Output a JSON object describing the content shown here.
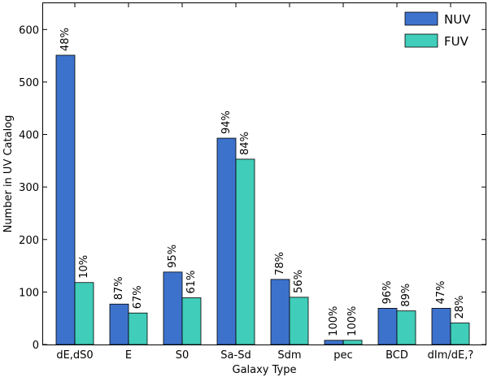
{
  "chart_data": {
    "type": "bar",
    "title": "",
    "xlabel": "Galaxy Type",
    "ylabel": "Number in UV Catalog",
    "ylim": [
      0,
      650
    ],
    "yticks": [
      0,
      100,
      200,
      300,
      400,
      500,
      600
    ],
    "grid": false,
    "legend_position": "top-right",
    "categories": [
      "dE,dS0",
      "E",
      "S0",
      "Sa-Sd",
      "Sdm",
      "pec",
      "BCD",
      "dIm/dE,?"
    ],
    "series": [
      {
        "name": "NUV",
        "color": "#3d72cc",
        "values": [
          551,
          77,
          138,
          393,
          124,
          8,
          69,
          69
        ],
        "labels": [
          "48%",
          "87%",
          "95%",
          "94%",
          "78%",
          "100%",
          "96%",
          "47%"
        ]
      },
      {
        "name": "FUV",
        "color": "#40cdb9",
        "values": [
          118,
          60,
          89,
          353,
          90,
          8,
          64,
          41
        ],
        "labels": [
          "10%",
          "67%",
          "61%",
          "84%",
          "56%",
          "100%",
          "89%",
          "28%"
        ]
      }
    ]
  }
}
